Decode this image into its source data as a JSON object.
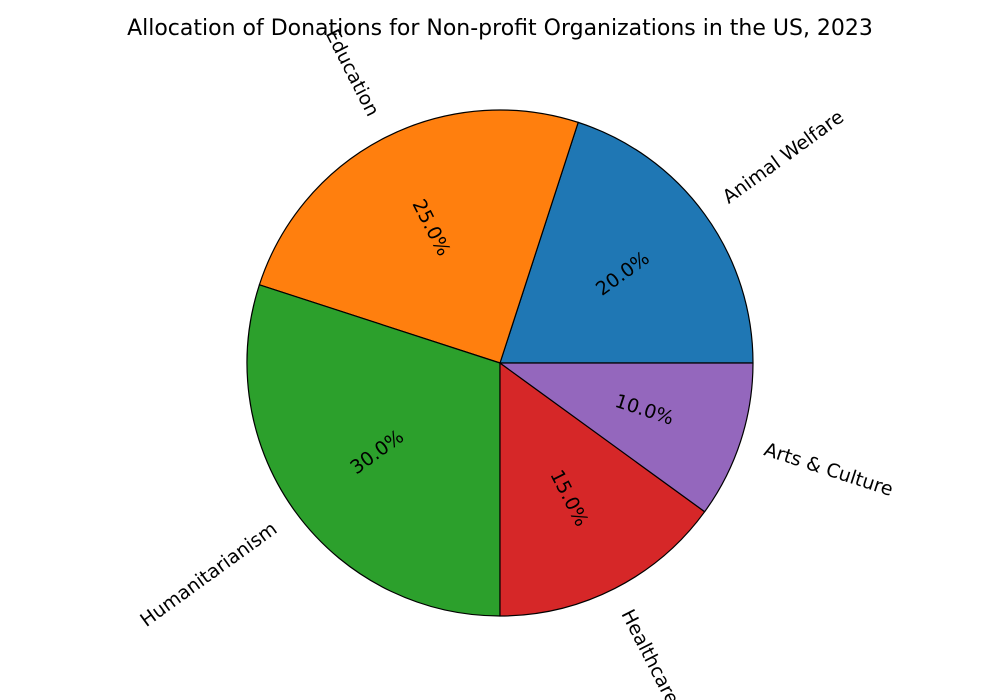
{
  "chart_data": {
    "type": "pie",
    "title": "Allocation of Donations for Non-profit Organizations in the US, 2023",
    "categories": [
      "Animal Welfare",
      "Education",
      "Humanitarianism",
      "Healthcare",
      "Arts & Culture"
    ],
    "values": [
      20,
      25,
      30,
      15,
      10
    ],
    "percent_labels": [
      "20.0%",
      "25.0%",
      "30.0%",
      "15.0%",
      "10.0%"
    ],
    "colors": [
      "#1f77b4",
      "#ff7f0e",
      "#2ca02c",
      "#d62728",
      "#9467bd"
    ],
    "start_angle": 0,
    "direction": "counterclockwise",
    "legend": "none"
  }
}
